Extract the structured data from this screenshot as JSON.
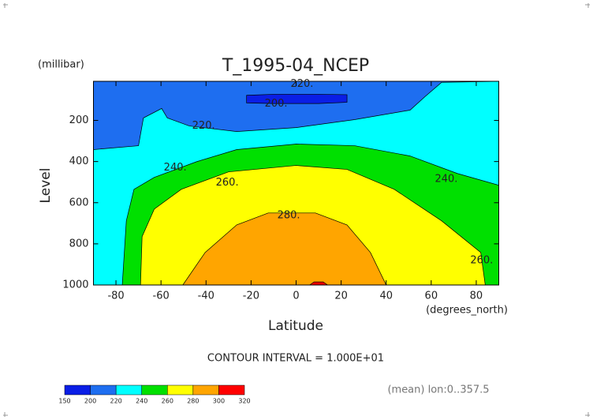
{
  "chart_data": {
    "type": "contour",
    "title": "T_1995-04_NCEP",
    "ylabel": "Level",
    "y_unit": "(millibar)",
    "xlabel": "Latitude",
    "x_unit": "(degrees_north)",
    "note": "CONTOUR INTERVAL = 1.000E+01",
    "footnote": "(mean) lon:0..357.5",
    "xlim": [
      -90,
      90
    ],
    "ylim": [
      1000,
      10
    ],
    "xticks": [
      -80,
      -60,
      -40,
      -20,
      0,
      20,
      40,
      60,
      80
    ],
    "yticks": [
      200,
      400,
      600,
      800,
      1000
    ],
    "levels": [
      150,
      200,
      220,
      240,
      260,
      280,
      300,
      320
    ],
    "colors": [
      "#0a1ee6",
      "#1e6ef0",
      "#00ffff",
      "#00e000",
      "#ffff00",
      "#ffa500",
      "#ff0000"
    ],
    "regions": [
      {
        "min": 200,
        "lat": [
          -90,
          90,
          90,
          -90
        ],
        "p": [
          1000,
          1000,
          10,
          10
        ]
      },
      {
        "min": 220,
        "lat": [
          -90,
          -90,
          -70,
          -67.8,
          -59.7,
          -57.2,
          -47.4,
          -26.4,
          0,
          26,
          50.6,
          57.6,
          64.6,
          90,
          90
        ],
        "p": [
          1000,
          342,
          323,
          188,
          142,
          188,
          227,
          254,
          235,
          196,
          150,
          81,
          15,
          10,
          1000
        ]
      },
      {
        "min": 240,
        "lat": [
          -77.2,
          -75.4,
          -72,
          -63,
          -44,
          -26.4,
          0,
          26,
          50.6,
          71.6,
          90,
          90
        ],
        "p": [
          1000,
          688,
          535,
          477,
          400,
          342,
          315,
          323,
          373,
          458,
          515,
          1000
        ]
      },
      {
        "min": 260,
        "lat": [
          -69.1,
          -68.4,
          -63,
          -51,
          -30,
          0,
          22.6,
          43.6,
          64.6,
          82,
          84
        ],
        "p": [
          1000,
          765,
          631,
          535,
          450,
          419,
          438,
          535,
          688,
          842,
          1000
        ]
      },
      {
        "min": 280,
        "lat": [
          -50.3,
          -40.4,
          -26.4,
          -12.4,
          8.6,
          22.6,
          33,
          40
        ],
        "p": [
          1000,
          842,
          708,
          650,
          650,
          708,
          842,
          1000
        ]
      },
      {
        "min": 300,
        "lat": [
          6,
          8,
          12,
          14
        ],
        "p": [
          1000,
          985,
          985,
          1000
        ]
      },
      {
        "max": 200,
        "lat": [
          -22,
          -10,
          10,
          22.6,
          22.6,
          10,
          -10,
          -22
        ],
        "p": [
          115,
          118,
          118,
          112,
          75,
          73,
          73,
          78
        ]
      }
    ],
    "contour_labels": [
      {
        "text": "220.",
        "lat": 2.6,
        "p": 23
      },
      {
        "text": "220.",
        "lat": -41.1,
        "p": 227
      },
      {
        "text": "200.",
        "lat": -8.9,
        "p": 119
      },
      {
        "text": "240.",
        "lat": -53.7,
        "p": 431
      },
      {
        "text": "240.",
        "lat": 66.7,
        "p": 485
      },
      {
        "text": "260.",
        "lat": -30.6,
        "p": 504
      },
      {
        "text": "260.",
        "lat": 82.4,
        "p": 881
      },
      {
        "text": "280.",
        "lat": -3.3,
        "p": 662
      }
    ]
  }
}
